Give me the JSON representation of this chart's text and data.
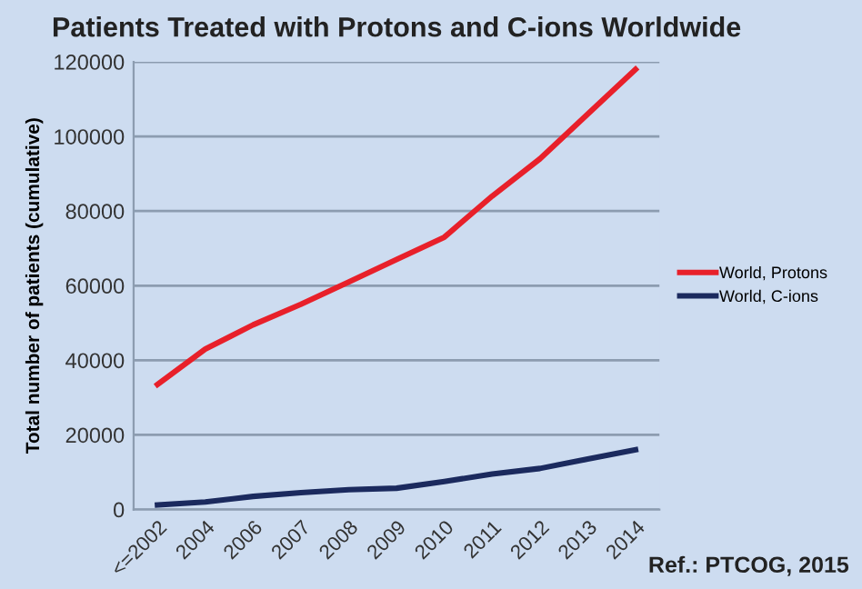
{
  "chart_data": {
    "type": "line",
    "title": "Patients Treated with Protons and C-ions Worldwide",
    "ylabel": "Total number of patients (cumulative)",
    "categories": [
      "<=2002",
      "2004",
      "2006",
      "2007",
      "2008",
      "2009",
      "2010",
      "2011",
      "2012",
      "2013",
      "2014"
    ],
    "series": [
      {
        "name": "World, Protons",
        "color": "#e8202a",
        "values": [
          33500,
          43000,
          49500,
          55000,
          61000,
          67000,
          73000,
          84000,
          94000,
          106000,
          118000
        ]
      },
      {
        "name": "World, C-ions",
        "color": "#1b2a5e",
        "values": [
          1200,
          2000,
          3500,
          4500,
          5300,
          5700,
          7500,
          9500,
          11000,
          13500,
          16000
        ]
      }
    ],
    "ylim": [
      0,
      120000
    ],
    "yticks": [
      0,
      20000,
      40000,
      60000,
      80000,
      100000,
      120000
    ],
    "grid": "y",
    "legend": "right",
    "marker": "none",
    "line_style": "solid",
    "annotations": [
      "Ref.: PTCOG, 2015"
    ]
  }
}
